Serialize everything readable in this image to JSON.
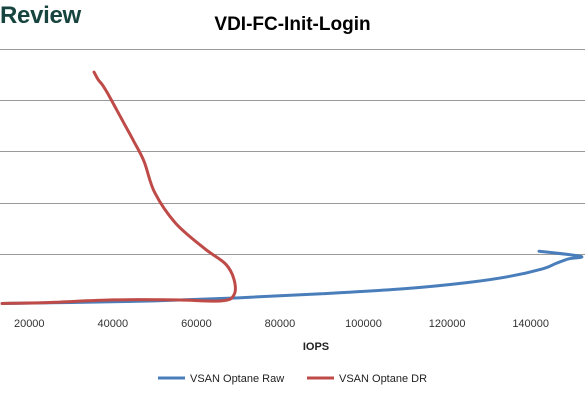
{
  "page": {
    "brand": "Review"
  },
  "chart_data": {
    "type": "line",
    "title": "VDI-FC-Init-Login",
    "xlabel": "IOPS",
    "ylabel": "",
    "xlim": [
      13000,
      153000
    ],
    "ylim": [
      0,
      5
    ],
    "x_ticks": [
      20000,
      40000,
      60000,
      80000,
      100000,
      120000,
      140000
    ],
    "x_tick_labels": [
      "20000",
      "40000",
      "60000",
      "80000",
      "100000",
      "120000",
      "140000"
    ],
    "y_gridlines": [
      1,
      2,
      3,
      4,
      5
    ],
    "grid": true,
    "legend_position": "bottom",
    "series": [
      {
        "name": "VSAN Optane Raw",
        "color": "#4a7ebb",
        "x": [
          13500,
          30000,
          50000,
          70000,
          90000,
          110000,
          125000,
          135000,
          143000,
          146000,
          149000,
          152000,
          142000
        ],
        "y": [
          0.03,
          0.05,
          0.08,
          0.14,
          0.22,
          0.32,
          0.44,
          0.56,
          0.71,
          0.81,
          0.9,
          0.95,
          1.05
        ]
      },
      {
        "name": "VSAN Optane DR",
        "color": "#be4b48",
        "x": [
          13500,
          25000,
          40000,
          55000,
          66000,
          69000,
          69000,
          67000,
          62000,
          55000,
          50000,
          47500,
          45000,
          43000,
          41000,
          39000,
          37500,
          36500,
          35500
        ],
        "y": [
          0.03,
          0.05,
          0.1,
          0.1,
          0.08,
          0.2,
          0.5,
          0.8,
          1.1,
          1.6,
          2.2,
          2.8,
          3.2,
          3.5,
          3.8,
          4.1,
          4.3,
          4.4,
          4.55
        ]
      }
    ]
  }
}
